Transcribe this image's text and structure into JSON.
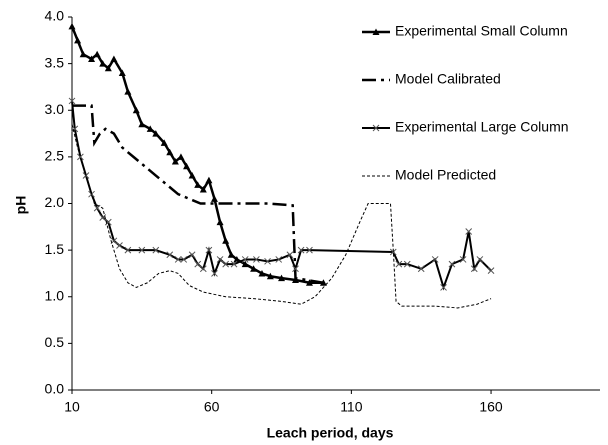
{
  "chart_data": {
    "type": "line",
    "xlabel": "Leach period, days",
    "ylabel": "pH",
    "xlim": [
      10,
      199
    ],
    "xticks": [
      10,
      60,
      110,
      160
    ],
    "ylim": [
      0,
      4
    ],
    "yticks": [
      {
        "value": 0,
        "label": "0.0"
      },
      {
        "value": 0.5,
        "label": "0.5"
      },
      {
        "value": 1,
        "label": "1.0"
      },
      {
        "value": 1.5,
        "label": "1.5"
      },
      {
        "value": 2,
        "label": "2.0"
      },
      {
        "value": 2.5,
        "label": "2.5"
      },
      {
        "value": 3,
        "label": "3.0"
      },
      {
        "value": 3.5,
        "label": "3.5"
      },
      {
        "value": 4,
        "label": "4.0"
      }
    ],
    "grid": false,
    "legend": "right",
    "series": [
      {
        "name": "Experimental Small Column",
        "color": "#000000",
        "style": "solid",
        "width": 2.5,
        "marker": "triangle",
        "x": [
          10,
          12,
          14,
          17,
          19,
          21,
          23,
          25,
          28,
          30,
          33,
          35,
          38,
          40,
          43,
          45,
          47,
          49,
          51,
          53,
          55,
          57,
          59,
          61,
          63,
          65,
          67,
          69,
          72,
          75,
          78,
          81,
          85,
          90,
          95,
          100
        ],
        "values": [
          3.9,
          3.75,
          3.6,
          3.55,
          3.6,
          3.5,
          3.45,
          3.55,
          3.4,
          3.2,
          3.0,
          2.85,
          2.8,
          2.75,
          2.65,
          2.55,
          2.45,
          2.5,
          2.4,
          2.3,
          2.2,
          2.15,
          2.25,
          2.05,
          1.8,
          1.6,
          1.45,
          1.4,
          1.35,
          1.3,
          1.25,
          1.22,
          1.2,
          1.18,
          1.15,
          1.15
        ]
      },
      {
        "name": "Model Calibrated",
        "color": "#000000",
        "style": "dashdot",
        "width": 2.5,
        "marker": "none",
        "x": [
          10,
          17,
          18,
          20,
          22,
          25,
          28,
          32,
          36,
          40,
          44,
          48,
          52,
          56,
          60,
          70,
          80,
          89,
          90,
          100
        ],
        "values": [
          3.05,
          3.05,
          2.65,
          2.75,
          2.8,
          2.75,
          2.6,
          2.5,
          2.4,
          2.3,
          2.2,
          2.1,
          2.05,
          2.0,
          2.0,
          2.0,
          2.0,
          1.98,
          1.2,
          1.15
        ]
      },
      {
        "name": "Experimental Large Column",
        "color": "#000000",
        "style": "solid",
        "width": 2,
        "marker": "cross",
        "x": [
          10,
          11,
          13,
          15,
          17,
          19,
          21,
          23,
          25,
          27,
          30,
          35,
          40,
          45,
          48,
          50,
          53,
          55,
          57,
          59,
          61,
          63,
          65,
          68,
          72,
          76,
          80,
          84,
          88,
          90,
          92,
          95,
          125,
          127,
          130,
          135,
          140,
          143,
          146,
          150,
          152,
          154,
          156,
          160
        ],
        "values": [
          3.1,
          2.8,
          2.5,
          2.3,
          2.1,
          1.95,
          1.85,
          1.8,
          1.6,
          1.55,
          1.5,
          1.5,
          1.5,
          1.45,
          1.4,
          1.4,
          1.45,
          1.35,
          1.3,
          1.5,
          1.25,
          1.4,
          1.35,
          1.35,
          1.4,
          1.4,
          1.38,
          1.4,
          1.45,
          1.3,
          1.5,
          1.5,
          1.48,
          1.35,
          1.35,
          1.3,
          1.4,
          1.1,
          1.35,
          1.4,
          1.7,
          1.3,
          1.4,
          1.28
        ]
      },
      {
        "name": "Model Predicted",
        "color": "#000000",
        "style": "dotted",
        "width": 1,
        "marker": "none",
        "x": [
          10,
          12,
          15,
          18,
          21,
          24,
          27,
          30,
          33,
          37,
          41,
          45,
          48,
          52,
          57,
          65,
          75,
          85,
          92,
          97,
          103,
          108,
          113,
          116,
          124,
          125,
          126,
          128,
          140,
          148,
          155,
          160
        ],
        "values": [
          2.85,
          2.6,
          2.3,
          2.0,
          1.95,
          1.6,
          1.3,
          1.15,
          1.1,
          1.15,
          1.25,
          1.28,
          1.25,
          1.12,
          1.05,
          1.0,
          0.98,
          0.95,
          0.92,
          1.0,
          1.2,
          1.45,
          1.8,
          2.0,
          2.0,
          1.5,
          0.95,
          0.9,
          0.9,
          0.88,
          0.92,
          0.98
        ]
      }
    ]
  }
}
